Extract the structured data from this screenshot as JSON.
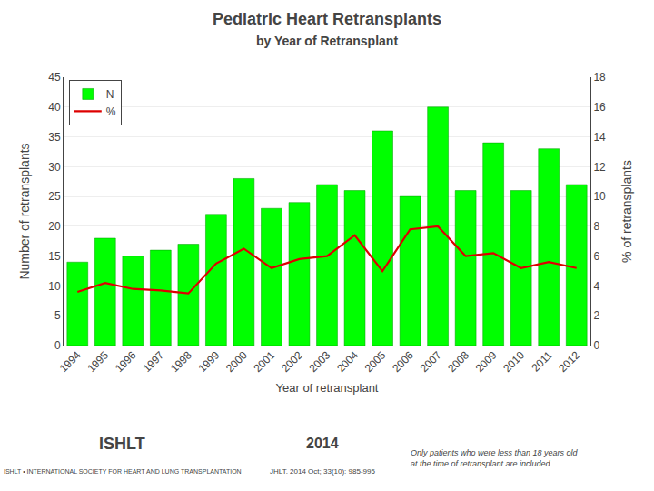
{
  "chart_data": {
    "type": "bar",
    "title": "Pediatric Heart Retransplants",
    "subtitle": "by Year of Retransplant",
    "xlabel": "Year of retransplant",
    "ylabel": "Number of retransplants",
    "y2label": "% of retransplants",
    "categories": [
      "1994",
      "1995",
      "1996",
      "1997",
      "1998",
      "1999",
      "2000",
      "2001",
      "2002",
      "2003",
      "2004",
      "2005",
      "2006",
      "2007",
      "2008",
      "2009",
      "2010",
      "2011",
      "2012"
    ],
    "series": [
      {
        "name": "N",
        "type": "bar",
        "color": "#00ff00",
        "values": [
          14,
          18,
          15,
          16,
          17,
          22,
          28,
          23,
          24,
          27,
          26,
          36,
          25,
          40,
          26,
          34,
          26,
          33,
          27
        ]
      },
      {
        "name": "%",
        "type": "line",
        "color": "#dd0000",
        "axis": "y2",
        "values": [
          3.6,
          4.2,
          3.8,
          3.7,
          3.5,
          5.5,
          6.5,
          5.2,
          5.8,
          6.0,
          7.4,
          5.0,
          7.8,
          8.0,
          6.0,
          6.2,
          5.2,
          5.6,
          5.2
        ]
      }
    ],
    "ylim": [
      0,
      45
    ],
    "yticks": [
      0,
      5,
      10,
      15,
      20,
      25,
      30,
      35,
      40,
      45
    ],
    "y2lim": [
      0,
      18
    ],
    "y2ticks": [
      0,
      2,
      4,
      6,
      8,
      10,
      12,
      14,
      16,
      18
    ],
    "grid": true,
    "legend": "upper left",
    "annotations": [
      "ISHLT",
      "ISHLT • INTERNATIONAL SOCIETY FOR HEART AND LUNG TRANSPLANTATION",
      "2014",
      "JHLT. 2014 Oct; 33(10): 985-995",
      "Only patients who were less than 18 years old\nat the time of retransplant are included."
    ]
  }
}
